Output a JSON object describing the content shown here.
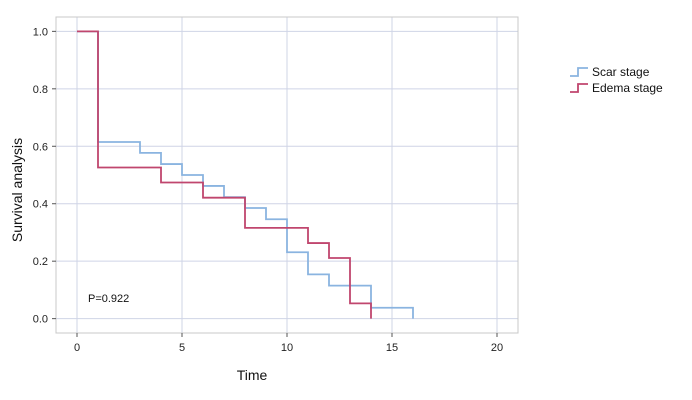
{
  "chart_data": {
    "type": "line",
    "step": true,
    "title": "",
    "xlabel": "Time",
    "ylabel": "Survival analysis",
    "xlim": [
      -1,
      21
    ],
    "ylim": [
      -0.05,
      1.05
    ],
    "x_ticks": [
      0,
      5,
      10,
      15,
      20
    ],
    "y_ticks": [
      0.0,
      0.2,
      0.4,
      0.6,
      0.8,
      1.0
    ],
    "y_tick_labels": [
      "0.0",
      "0.2",
      "0.4",
      "0.6",
      "0.8",
      "1.0"
    ],
    "grid": true,
    "legend_position": "top-right",
    "annotation": "P=0.922",
    "series": [
      {
        "name": "Scar stage",
        "color": "#8ab4e0",
        "x": [
          0,
          1,
          3,
          4,
          5,
          6,
          7,
          8,
          9,
          10,
          11,
          12,
          14,
          16
        ],
        "y": [
          1.0,
          0.615,
          0.577,
          0.538,
          0.5,
          0.462,
          0.423,
          0.385,
          0.346,
          0.231,
          0.154,
          0.115,
          0.038,
          0.0
        ]
      },
      {
        "name": "Edema stage",
        "color": "#c0466e",
        "x": [
          0,
          1,
          4,
          6,
          8,
          11,
          12,
          13,
          14
        ],
        "y": [
          1.0,
          0.526,
          0.474,
          0.421,
          0.316,
          0.263,
          0.211,
          0.053,
          0.0
        ]
      }
    ]
  }
}
